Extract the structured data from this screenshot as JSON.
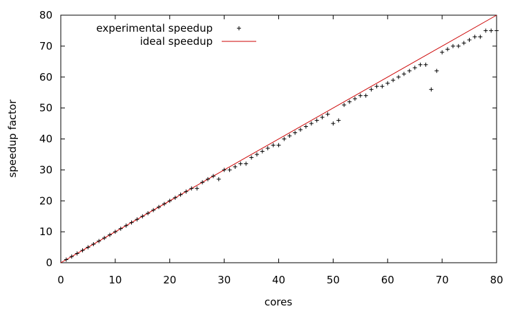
{
  "chart_data": {
    "type": "scatter",
    "xlabel": "cores",
    "ylabel": "speedup factor",
    "xlim": [
      0,
      80
    ],
    "ylim": [
      0,
      80
    ],
    "xticks": [
      0,
      10,
      20,
      30,
      40,
      50,
      60,
      70,
      80
    ],
    "yticks": [
      0,
      10,
      20,
      30,
      40,
      50,
      60,
      70,
      80
    ],
    "grid": false,
    "legend_position": "top-left",
    "colors": {
      "experimental": "#000000",
      "ideal": "#cc0000"
    },
    "series": [
      {
        "name": "experimental speedup",
        "style": "plus-markers",
        "points": [
          [
            1,
            1
          ],
          [
            2,
            2
          ],
          [
            3,
            3
          ],
          [
            4,
            4
          ],
          [
            5,
            5
          ],
          [
            6,
            6
          ],
          [
            7,
            7
          ],
          [
            8,
            8
          ],
          [
            9,
            9
          ],
          [
            10,
            10
          ],
          [
            11,
            11
          ],
          [
            12,
            12
          ],
          [
            13,
            13
          ],
          [
            14,
            14
          ],
          [
            15,
            15
          ],
          [
            16,
            16
          ],
          [
            17,
            17
          ],
          [
            18,
            18
          ],
          [
            19,
            19
          ],
          [
            20,
            20
          ],
          [
            21,
            21
          ],
          [
            22,
            22
          ],
          [
            23,
            23
          ],
          [
            24,
            24
          ],
          [
            25,
            24
          ],
          [
            26,
            26
          ],
          [
            27,
            27
          ],
          [
            28,
            28
          ],
          [
            29,
            27
          ],
          [
            30,
            30
          ],
          [
            31,
            30
          ],
          [
            32,
            31
          ],
          [
            33,
            32
          ],
          [
            34,
            32
          ],
          [
            35,
            34
          ],
          [
            36,
            35
          ],
          [
            37,
            36
          ],
          [
            38,
            37
          ],
          [
            39,
            38
          ],
          [
            40,
            38
          ],
          [
            41,
            40
          ],
          [
            42,
            41
          ],
          [
            43,
            42
          ],
          [
            44,
            43
          ],
          [
            45,
            44
          ],
          [
            46,
            45
          ],
          [
            47,
            46
          ],
          [
            48,
            47
          ],
          [
            49,
            48
          ],
          [
            50,
            45
          ],
          [
            51,
            46
          ],
          [
            52,
            51
          ],
          [
            53,
            52
          ],
          [
            54,
            53
          ],
          [
            55,
            54
          ],
          [
            56,
            54
          ],
          [
            57,
            56
          ],
          [
            58,
            57
          ],
          [
            59,
            57
          ],
          [
            60,
            58
          ],
          [
            61,
            59
          ],
          [
            62,
            60
          ],
          [
            63,
            61
          ],
          [
            64,
            62
          ],
          [
            65,
            63
          ],
          [
            66,
            64
          ],
          [
            67,
            64
          ],
          [
            68,
            56
          ],
          [
            69,
            62
          ],
          [
            70,
            68
          ],
          [
            71,
            69
          ],
          [
            72,
            70
          ],
          [
            73,
            70
          ],
          [
            74,
            71
          ],
          [
            75,
            72
          ],
          [
            76,
            73
          ],
          [
            77,
            73
          ],
          [
            78,
            75
          ],
          [
            79,
            75
          ],
          [
            80,
            75
          ]
        ]
      },
      {
        "name": "ideal speedup",
        "style": "line",
        "points": [
          [
            0,
            0
          ],
          [
            80,
            80
          ]
        ]
      }
    ]
  }
}
